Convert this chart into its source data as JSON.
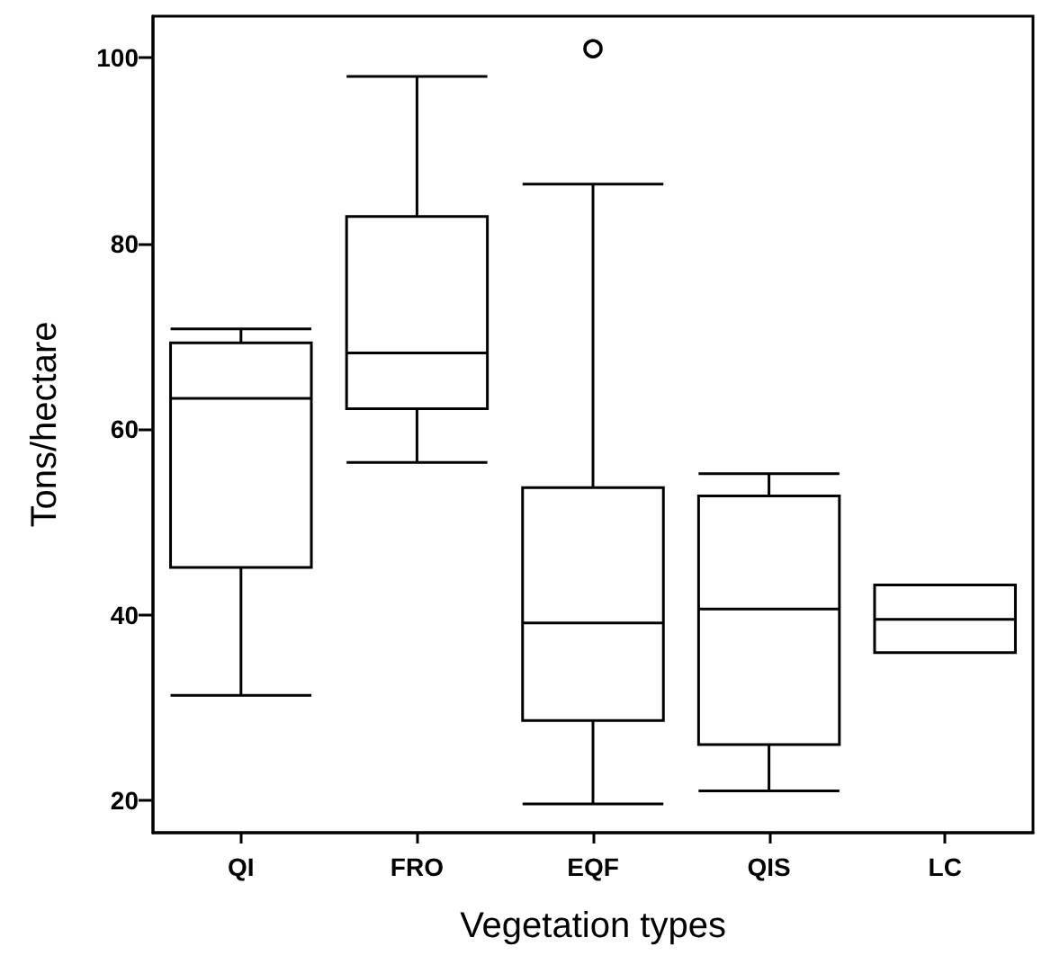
{
  "chart_data": {
    "type": "box",
    "xlabel": "Vegetation types",
    "ylabel": "Tons/hectare",
    "categories": [
      "QI",
      "FRO",
      "EQF",
      "QIS",
      "LC"
    ],
    "boxes": [
      {
        "low": 31.3,
        "q1": 45.1,
        "median": 63.3,
        "q3": 69.3,
        "high": 70.8
      },
      {
        "low": 56.4,
        "q1": 62.2,
        "median": 68.2,
        "q3": 82.9,
        "high": 98.0
      },
      {
        "low": 19.6,
        "q1": 28.6,
        "median": 39.1,
        "q3": 53.7,
        "high": 86.4,
        "outliers": [
          101.0
        ]
      },
      {
        "low": 21.0,
        "q1": 26.0,
        "median": 40.6,
        "q3": 52.8,
        "high": 55.2
      },
      {
        "low": 35.9,
        "q1": 35.9,
        "median": 39.5,
        "q3": 43.2,
        "high": 43.2
      }
    ],
    "color": "#000000",
    "ylim": [
      16.5,
      104.5
    ],
    "yticks": [
      20,
      40,
      60,
      80,
      100
    ],
    "grid": false
  }
}
